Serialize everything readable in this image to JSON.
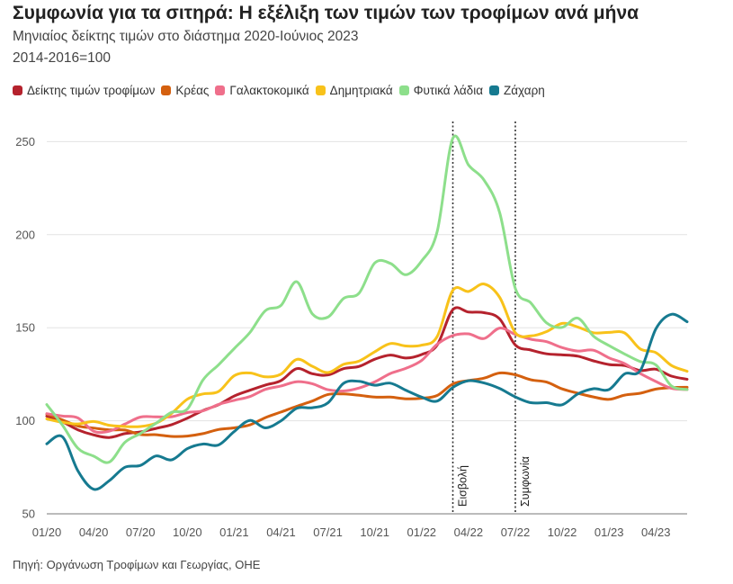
{
  "header": {
    "title": "Συμφωνία για τα σιτηρά: Η εξέλιξη των τιμών των τροφίμων ανά μήνα",
    "subtitle": "Μηνιαίος δείκτης τιμών στο διάστημα 2020-Ιούνιος 2023",
    "subtitle2": "2014-2016=100"
  },
  "footer": {
    "source": "Πηγή: Οργάνωση Τροφίμων και Γεωργίας, ΟΗΕ"
  },
  "chart_data": {
    "type": "line",
    "x": [
      "01/20",
      "02/20",
      "03/20",
      "04/20",
      "05/20",
      "06/20",
      "07/20",
      "08/20",
      "09/20",
      "10/20",
      "11/20",
      "12/20",
      "01/21",
      "02/21",
      "03/21",
      "04/21",
      "05/21",
      "06/21",
      "07/21",
      "08/21",
      "09/21",
      "10/21",
      "11/21",
      "12/21",
      "01/22",
      "02/22",
      "03/22",
      "04/22",
      "05/22",
      "06/22",
      "07/22",
      "08/22",
      "09/22",
      "10/22",
      "11/22",
      "12/22",
      "01/23",
      "02/23",
      "03/23",
      "04/23",
      "05/23",
      "06/23"
    ],
    "x_tick_labels": [
      "01/20",
      "04/20",
      "07/20",
      "10/20",
      "01/21",
      "04/21",
      "07/21",
      "10/21",
      "01/22",
      "04/22",
      "07/22",
      "10/22",
      "01/23",
      "04/23"
    ],
    "y_ticks": [
      50,
      100,
      150,
      200,
      250
    ],
    "ylim": [
      50,
      256
    ],
    "grid": true,
    "legend_position": "top",
    "series": [
      {
        "name": "Δείκτης τιμών τροφίμων",
        "color": "#b5222d",
        "values": [
          102.5,
          99.4,
          95.1,
          92.4,
          91.0,
          93.1,
          94.0,
          95.9,
          97.9,
          101.4,
          105.5,
          108.6,
          113.3,
          116.4,
          119.2,
          121.6,
          128.0,
          125.3,
          124.6,
          128.0,
          129.2,
          133.1,
          135.3,
          133.7,
          135.6,
          140.7,
          159.7,
          158.4,
          158.1,
          154.7,
          140.7,
          138.0,
          136.0,
          135.4,
          134.7,
          132.2,
          130.2,
          129.7,
          127.0,
          127.7,
          124.0,
          122.3
        ]
      },
      {
        "name": "Κρέας",
        "color": "#d4600f",
        "values": [
          103.6,
          100.5,
          97.2,
          96.1,
          95.1,
          95.0,
          92.6,
          92.5,
          91.6,
          91.8,
          93.1,
          95.3,
          96.2,
          97.8,
          101.7,
          104.7,
          107.8,
          110.6,
          114.1,
          114.4,
          113.7,
          112.7,
          112.7,
          111.8,
          112.1,
          113.6,
          119.8,
          121.6,
          122.9,
          125.7,
          124.7,
          122.0,
          120.8,
          117.1,
          114.8,
          112.8,
          111.5,
          113.8,
          114.8,
          117.0,
          117.8,
          118.0
        ]
      },
      {
        "name": "Γαλακτοκομικά",
        "color": "#ef6f8b",
        "values": [
          103.8,
          102.5,
          101.5,
          94.4,
          94.4,
          98.2,
          102.0,
          102.1,
          102.2,
          104.4,
          105.3,
          108.8,
          111.0,
          113.0,
          116.9,
          118.7,
          121.0,
          119.9,
          116.7,
          116.0,
          117.6,
          120.9,
          125.4,
          128.2,
          132.4,
          141.1,
          145.8,
          146.7,
          144.2,
          149.8,
          146.4,
          143.8,
          142.5,
          139.3,
          137.5,
          137.9,
          133.8,
          130.7,
          125.4,
          121.1,
          117.4,
          116.8
        ]
      },
      {
        "name": "Δημητριακά",
        "color": "#f8c21a",
        "values": [
          101.0,
          99.2,
          98.3,
          99.6,
          97.6,
          96.9,
          96.9,
          98.7,
          104.0,
          111.6,
          114.4,
          115.7,
          124.2,
          125.7,
          123.6,
          125.1,
          133.0,
          129.3,
          125.9,
          130.3,
          132.1,
          137.1,
          141.5,
          140.2,
          140.6,
          145.3,
          170.1,
          169.5,
          173.5,
          166.3,
          147.3,
          145.6,
          147.9,
          152.3,
          150.4,
          147.3,
          147.5,
          147.2,
          138.6,
          136.6,
          129.7,
          126.6
        ]
      },
      {
        "name": "Φυτικά λάδια",
        "color": "#8ddf8b",
        "values": [
          108.7,
          97.7,
          85.2,
          81.0,
          77.8,
          88.4,
          93.2,
          98.7,
          104.6,
          106.3,
          121.9,
          130.1,
          138.8,
          147.4,
          159.2,
          162.0,
          174.7,
          157.5,
          155.7,
          165.7,
          168.6,
          184.8,
          184.6,
          178.5,
          185.9,
          201.7,
          251.8,
          237.5,
          229.3,
          211.8,
          171.1,
          163.3,
          152.6,
          150.2,
          155.2,
          145.5,
          140.4,
          135.9,
          131.8,
          130.0,
          118.7,
          116.8
        ]
      },
      {
        "name": "Ζάχαρη",
        "color": "#167a90",
        "values": [
          87.6,
          91.4,
          73.0,
          63.2,
          67.8,
          75.0,
          76.0,
          81.1,
          79.0,
          85.0,
          87.5,
          87.0,
          94.2,
          100.2,
          96.2,
          100.0,
          106.7,
          107.0,
          109.6,
          120.1,
          121.2,
          119.1,
          120.2,
          116.4,
          112.7,
          110.6,
          117.9,
          121.5,
          120.3,
          117.3,
          112.8,
          109.7,
          109.7,
          108.6,
          114.4,
          117.2,
          116.8,
          125.2,
          127.0,
          149.4,
          157.2,
          153.2
        ]
      }
    ],
    "annotations": [
      {
        "label": "Εισβολή",
        "x": "03/22"
      },
      {
        "label": "Συμφωνία",
        "x": "07/22"
      }
    ]
  }
}
